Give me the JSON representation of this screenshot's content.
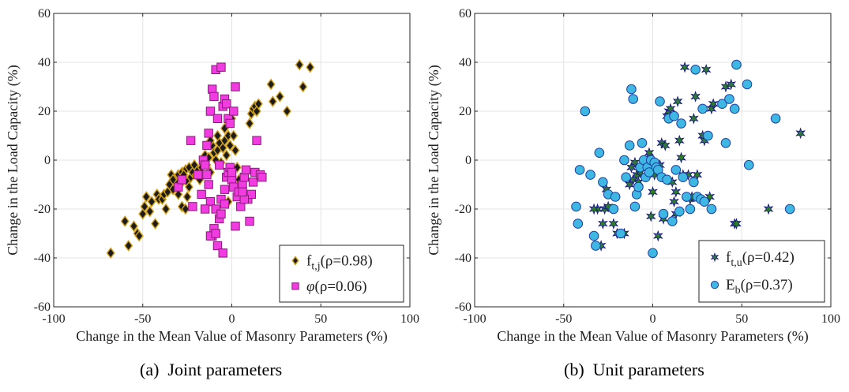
{
  "captions": {
    "a": "(a)  Joint parameters",
    "b": "(b)  Unit parameters"
  },
  "chart_data": [
    {
      "type": "scatter",
      "id": "a",
      "xlabel": "Change in the Mean Value of Masonry Parameters (%)",
      "ylabel": "Change in the Load Capacity (%)",
      "xlim": [
        -100,
        100
      ],
      "ylim": [
        -60,
        60
      ],
      "xticks": [
        -100,
        -50,
        0,
        50,
        100
      ],
      "yticks": [
        -60,
        -40,
        -20,
        0,
        20,
        40,
        60
      ],
      "grid": true,
      "legend_position": "bottom-right",
      "series": [
        {
          "name": "f_{t,j}(ρ=0.98)",
          "legend_main": "f",
          "legend_sub": "t,j",
          "legend_rest": "(ρ=0.98)",
          "marker": "diamond",
          "color": "#1c1c1c",
          "edge": "#d4a017",
          "points": [
            [
              -68,
              -38
            ],
            [
              -60,
              -25
            ],
            [
              -58,
              -35
            ],
            [
              -55,
              -27
            ],
            [
              -53,
              -30
            ],
            [
              -52,
              -31
            ],
            [
              -50,
              -22
            ],
            [
              -49,
              -19
            ],
            [
              -48,
              -15
            ],
            [
              -46,
              -21
            ],
            [
              -45,
              -17
            ],
            [
              -43,
              -26
            ],
            [
              -42,
              -14
            ],
            [
              -41,
              -16
            ],
            [
              -39,
              -16
            ],
            [
              -38,
              -14
            ],
            [
              -37,
              -20
            ],
            [
              -36,
              -13
            ],
            [
              -35,
              -10
            ],
            [
              -34,
              -6
            ],
            [
              -33,
              -12
            ],
            [
              -32,
              -8
            ],
            [
              -31,
              -9
            ],
            [
              -30,
              -6
            ],
            [
              -29,
              -10
            ],
            [
              -28,
              -5
            ],
            [
              -27,
              -8
            ],
            [
              -26,
              -4
            ],
            [
              -25,
              -9
            ],
            [
              -24,
              -3
            ],
            [
              -23,
              -7
            ],
            [
              -22,
              -5
            ],
            [
              -21,
              -2
            ],
            [
              -20,
              -6
            ],
            [
              -19,
              -4
            ],
            [
              -18,
              -8
            ],
            [
              -17,
              -3
            ],
            [
              -16,
              -1
            ],
            [
              -15,
              2
            ],
            [
              -14,
              -2
            ],
            [
              -13,
              1
            ],
            [
              -12,
              -5
            ],
            [
              -11,
              6
            ],
            [
              -10,
              3
            ],
            [
              -9,
              0
            ],
            [
              -8,
              4
            ],
            [
              -7,
              7
            ],
            [
              -6,
              -1
            ],
            [
              -5,
              5
            ],
            [
              -4,
              8
            ],
            [
              -3,
              2
            ],
            [
              -2,
              10
            ],
            [
              -1,
              6
            ],
            [
              0,
              17
            ],
            [
              1,
              10
            ],
            [
              2,
              4
            ],
            [
              3,
              -3
            ],
            [
              4,
              -8
            ],
            [
              5,
              -10
            ],
            [
              -2,
              -17
            ],
            [
              -28,
              -19
            ],
            [
              -25,
              -15
            ],
            [
              -26,
              -20
            ],
            [
              -30,
              -14
            ],
            [
              -33,
              -8
            ],
            [
              -27,
              -6
            ],
            [
              -24,
              -11
            ],
            [
              -8,
              10
            ],
            [
              -4,
              13
            ],
            [
              -12,
              8
            ],
            [
              10,
              15
            ],
            [
              11,
              19
            ],
            [
              12,
              21
            ],
            [
              13,
              22
            ],
            [
              14,
              20
            ],
            [
              15,
              23
            ],
            [
              22,
              31
            ],
            [
              23,
              24
            ],
            [
              27,
              26
            ],
            [
              31,
              20
            ],
            [
              38,
              39
            ],
            [
              40,
              30
            ],
            [
              44,
              38
            ]
          ]
        },
        {
          "name": "φ(ρ=0.06)",
          "legend_main": "φ",
          "legend_sub": "",
          "legend_rest": "(ρ=0.06)",
          "marker": "square",
          "color": "#f03ce0",
          "edge": "#8a1a7a",
          "points": [
            [
              -30,
              -11
            ],
            [
              -28,
              -8
            ],
            [
              -23,
              8
            ],
            [
              -22,
              -19
            ],
            [
              -19,
              -6
            ],
            [
              -17,
              -14
            ],
            [
              -16,
              0
            ],
            [
              -15,
              -2
            ],
            [
              -14,
              -6
            ],
            [
              -13,
              -10
            ],
            [
              -12,
              -17
            ],
            [
              -11,
              -31
            ],
            [
              -10,
              -28
            ],
            [
              -9,
              -20
            ],
            [
              -8,
              -35
            ],
            [
              -7,
              -24
            ],
            [
              -6,
              -16
            ],
            [
              -5,
              -38
            ],
            [
              -4,
              -12
            ],
            [
              -3,
              -7
            ],
            [
              -2,
              -5
            ],
            [
              -1,
              -3
            ],
            [
              0,
              -8
            ],
            [
              1,
              -11
            ],
            [
              2,
              -27
            ],
            [
              3,
              -15
            ],
            [
              4,
              -13
            ],
            [
              5,
              -19
            ],
            [
              6,
              -10
            ],
            [
              7,
              -7
            ],
            [
              8,
              -4
            ],
            [
              9,
              -16
            ],
            [
              10,
              -25
            ],
            [
              11,
              -14
            ],
            [
              12,
              -9
            ],
            [
              13,
              -5
            ],
            [
              14,
              8
            ],
            [
              16,
              -6
            ],
            [
              17,
              -7
            ],
            [
              -14,
              6
            ],
            [
              -13,
              11
            ],
            [
              -12,
              20
            ],
            [
              -11,
              29
            ],
            [
              -10,
              26
            ],
            [
              -9,
              37
            ],
            [
              -8,
              17
            ],
            [
              -6,
              38
            ],
            [
              -5,
              22
            ],
            [
              -4,
              25
            ],
            [
              -3,
              23
            ],
            [
              -2,
              17
            ],
            [
              -1,
              15
            ],
            [
              1,
              20
            ],
            [
              2,
              30
            ],
            [
              0,
              -5
            ],
            [
              -7,
              -2
            ],
            [
              -15,
              -20
            ],
            [
              -12,
              -31
            ],
            [
              -9,
              -30
            ],
            [
              -6,
              -22
            ],
            [
              -4,
              -18
            ],
            [
              7,
              -16
            ],
            [
              6,
              -13
            ]
          ]
        }
      ]
    },
    {
      "type": "scatter",
      "id": "b",
      "xlabel": "Change in the Mean Value of Masonry Parameters (%)",
      "ylabel": "Change in the Load Capacity (%)",
      "xlim": [
        -100,
        100
      ],
      "ylim": [
        -60,
        60
      ],
      "xticks": [
        -100,
        -50,
        0,
        50,
        100
      ],
      "yticks": [
        -60,
        -40,
        -20,
        0,
        20,
        40,
        60
      ],
      "grid": true,
      "legend_position": "bottom-right",
      "series": [
        {
          "name": "f_{t,u}(ρ=0.42)",
          "legend_main": "f",
          "legend_sub": "t,u",
          "legend_rest": "(ρ=0.42)",
          "marker": "star",
          "color": "#2e7d2e",
          "edge": "#1a1a80",
          "points": [
            [
              -29,
              -35
            ],
            [
              -27,
              -20
            ],
            [
              -26,
              -12
            ],
            [
              -25,
              -19
            ],
            [
              -22,
              -26
            ],
            [
              -20,
              -30
            ],
            [
              -16,
              -30
            ],
            [
              -13,
              -10
            ],
            [
              -12,
              -3
            ],
            [
              -11,
              -8
            ],
            [
              -10,
              -1
            ],
            [
              -9,
              -6
            ],
            [
              -8,
              -9
            ],
            [
              -7,
              -5
            ],
            [
              -5,
              -2
            ],
            [
              -4,
              -3
            ],
            [
              -3,
              0
            ],
            [
              -2,
              3
            ],
            [
              -1,
              -23
            ],
            [
              0,
              -13
            ],
            [
              1,
              -6
            ],
            [
              2,
              -4
            ],
            [
              3,
              -31
            ],
            [
              4,
              -2
            ],
            [
              5,
              7
            ],
            [
              7,
              6
            ],
            [
              8,
              18
            ],
            [
              9,
              20
            ],
            [
              10,
              21
            ],
            [
              11,
              -9
            ],
            [
              12,
              -17
            ],
            [
              13,
              -13
            ],
            [
              14,
              24
            ],
            [
              15,
              8
            ],
            [
              16,
              1
            ],
            [
              17,
              -6
            ],
            [
              18,
              38
            ],
            [
              20,
              -6
            ],
            [
              21,
              -16
            ],
            [
              22,
              -15
            ],
            [
              23,
              17
            ],
            [
              24,
              26
            ],
            [
              25,
              -6
            ],
            [
              28,
              10
            ],
            [
              29,
              8
            ],
            [
              30,
              37
            ],
            [
              32,
              -15
            ],
            [
              33,
              21
            ],
            [
              34,
              23
            ],
            [
              41,
              30
            ],
            [
              44,
              31
            ],
            [
              46,
              -26
            ],
            [
              47,
              -26
            ],
            [
              65,
              -20
            ],
            [
              83,
              11
            ],
            [
              -31,
              -20
            ],
            [
              -28,
              -26
            ],
            [
              -33,
              -20
            ],
            [
              13,
              -22
            ],
            [
              6,
              -24
            ]
          ]
        },
        {
          "name": "E_b(ρ=0.37)",
          "legend_main": "E",
          "legend_sub": "b",
          "legend_rest": "(ρ=0.37)",
          "marker": "circle",
          "color": "#3eb7e3",
          "edge": "#1f3f9f",
          "points": [
            [
              -43,
              -19
            ],
            [
              -42,
              -26
            ],
            [
              -41,
              -4
            ],
            [
              -38,
              20
            ],
            [
              -35,
              -6
            ],
            [
              -33,
              -31
            ],
            [
              -32,
              -35
            ],
            [
              -30,
              3
            ],
            [
              -28,
              -9
            ],
            [
              -25,
              -14
            ],
            [
              -22,
              -20
            ],
            [
              -21,
              -15
            ],
            [
              -18,
              -30
            ],
            [
              -16,
              0
            ],
            [
              -15,
              -7
            ],
            [
              -13,
              6
            ],
            [
              -12,
              29
            ],
            [
              -11,
              25
            ],
            [
              -10,
              -19
            ],
            [
              -9,
              -14
            ],
            [
              -8,
              -11
            ],
            [
              -7,
              -3
            ],
            [
              -6,
              7
            ],
            [
              -5,
              0
            ],
            [
              -4,
              -7
            ],
            [
              -3,
              -3
            ],
            [
              -2,
              -5
            ],
            [
              -1,
              0
            ],
            [
              0,
              -38
            ],
            [
              1,
              -1
            ],
            [
              2,
              -3
            ],
            [
              3,
              -4
            ],
            [
              4,
              24
            ],
            [
              5,
              -7
            ],
            [
              6,
              -22
            ],
            [
              8,
              -8
            ],
            [
              9,
              17
            ],
            [
              11,
              -25
            ],
            [
              12,
              18
            ],
            [
              13,
              -4
            ],
            [
              15,
              -21
            ],
            [
              16,
              15
            ],
            [
              17,
              -7
            ],
            [
              19,
              -15
            ],
            [
              21,
              -20
            ],
            [
              23,
              -9
            ],
            [
              24,
              37
            ],
            [
              25,
              -15
            ],
            [
              27,
              -16
            ],
            [
              28,
              21
            ],
            [
              29,
              -17
            ],
            [
              31,
              10
            ],
            [
              33,
              -20
            ],
            [
              39,
              23
            ],
            [
              41,
              7
            ],
            [
              43,
              25
            ],
            [
              46,
              21
            ],
            [
              47,
              39
            ],
            [
              53,
              31
            ],
            [
              54,
              -2
            ],
            [
              69,
              17
            ],
            [
              77,
              -20
            ]
          ]
        }
      ]
    }
  ]
}
